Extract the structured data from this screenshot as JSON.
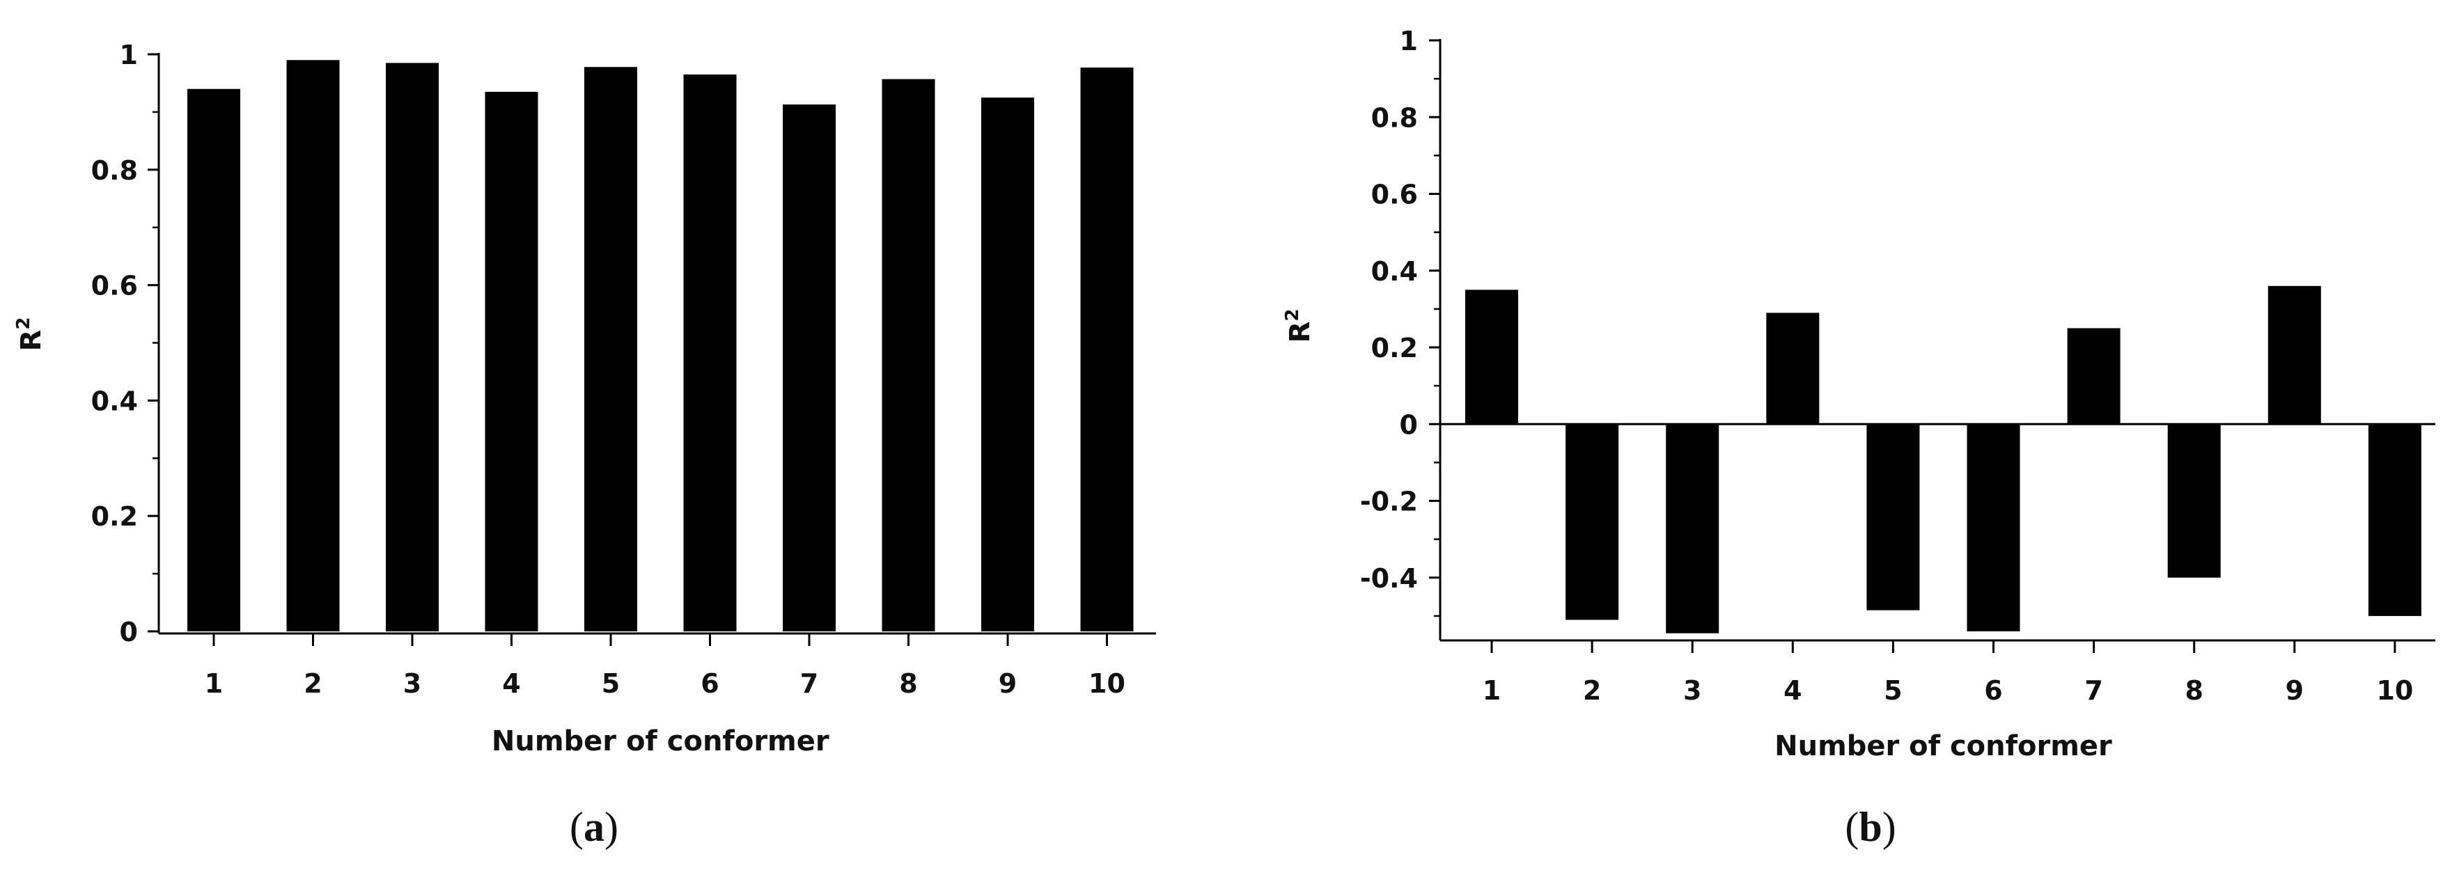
{
  "chart_data": [
    {
      "type": "bar",
      "panel_label_parts": [
        "(",
        "a",
        ")"
      ],
      "categories": [
        "1",
        "2",
        "3",
        "4",
        "5",
        "6",
        "7",
        "8",
        "9",
        "10"
      ],
      "values": [
        0.94,
        0.99,
        0.985,
        0.935,
        0.978,
        0.965,
        0.913,
        0.957,
        0.925,
        0.977
      ],
      "xlabel": "Number of conformer",
      "ylabel": "R",
      "ylabel_superscript": "2",
      "ylim": [
        0,
        1
      ],
      "yticks": [
        0,
        0.2,
        0.4,
        0.6,
        0.8,
        1
      ],
      "ytick_labels": [
        "0",
        "0.2",
        "0.4",
        "0.6",
        "0.8",
        "1"
      ],
      "grid": false,
      "bar_color": "#000000"
    },
    {
      "type": "bar",
      "panel_label_parts": [
        "(",
        "b",
        ")"
      ],
      "categories": [
        "1",
        "2",
        "3",
        "4",
        "5",
        "6",
        "7",
        "8",
        "9",
        "10"
      ],
      "values": [
        0.35,
        -0.51,
        -0.545,
        0.29,
        -0.485,
        -0.54,
        0.25,
        -0.4,
        0.36,
        -0.5
      ],
      "xlabel": "Number of conformer",
      "ylabel": "R",
      "ylabel_superscript": "2",
      "ylim": [
        -0.56,
        1
      ],
      "yticks": [
        -0.4,
        -0.2,
        0,
        0.2,
        0.4,
        0.6,
        0.8,
        1
      ],
      "ytick_labels": [
        "-0.4",
        "-0.2",
        "0",
        "0.2",
        "0.4",
        "0.6",
        "0.8",
        "1"
      ],
      "grid": false,
      "bar_color": "#000000"
    }
  ]
}
